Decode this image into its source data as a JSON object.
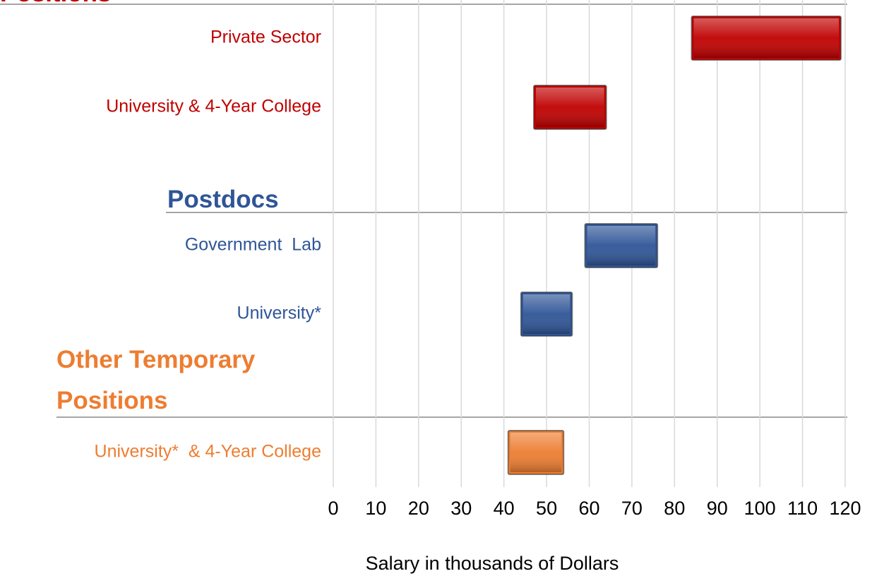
{
  "chart_data": {
    "type": "floating-bar",
    "groups": [
      {
        "name": "Positions",
        "color": "#c00000"
      },
      {
        "name": "Postdocs",
        "color": "#2f5597"
      },
      {
        "name": "Other Temporary Positions",
        "color": "#ed7d31"
      }
    ],
    "categories": [
      "Private Sector",
      "University & 4-Year College",
      "Government  Lab",
      "University*",
      "University*  & 4-Year College"
    ],
    "category_groups": [
      0,
      0,
      1,
      1,
      2
    ],
    "low": [
      84,
      47,
      59,
      44,
      41
    ],
    "high": [
      119,
      64,
      76,
      56,
      54
    ],
    "xlim": [
      0,
      120
    ],
    "xticks": [
      0,
      10,
      20,
      30,
      40,
      50,
      60,
      70,
      80,
      90,
      100,
      110,
      120
    ],
    "xlabel": "Salary in thousands of Dollars",
    "grid": true
  }
}
